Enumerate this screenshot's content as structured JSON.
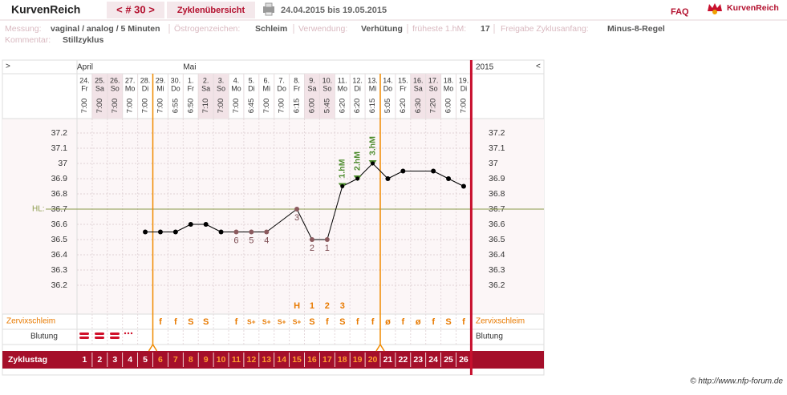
{
  "header": {
    "brand": "KurvenReich",
    "cycle_nav": "< # 30 >",
    "overview": "Zyklenübersicht",
    "date_range": "24.04.2015 bis 19.05.2015",
    "faq": "FAQ",
    "logo": "KurvenReich"
  },
  "info": {
    "measure_label": "Messung:",
    "measure": "vaginal / analog / 5 Minuten",
    "estrogen_label": "Östrogenzeichen:",
    "estrogen": "Schleim",
    "usage_label": "Verwendung:",
    "usage": "Verhütung",
    "earliest_label": "früheste 1.hM:",
    "earliest": "17",
    "release_label": "Freigabe Zyklusanfang:",
    "release": "Minus-8-Regel",
    "comment_label": "Kommentar:",
    "comment": "Stillzyklus"
  },
  "chart_data": {
    "type": "line",
    "nav_left": ">",
    "nav_right": "<",
    "year": "2015",
    "months": [
      "April",
      null,
      null,
      null,
      null,
      null,
      null,
      "Mai",
      null,
      null,
      null,
      null,
      null,
      null,
      null,
      null,
      null,
      null,
      null,
      null,
      null,
      null,
      null,
      null,
      null,
      null
    ],
    "categories": [
      "24.",
      "25.",
      "26.",
      "27.",
      "28.",
      "29.",
      "30.",
      "1.",
      "2.",
      "3.",
      "4.",
      "5.",
      "6.",
      "7.",
      "8.",
      "9.",
      "10.",
      "11.",
      "12.",
      "13.",
      "14.",
      "15.",
      "16.",
      "17.",
      "18.",
      "19."
    ],
    "weekdays": [
      "Fr",
      "Sa",
      "So",
      "Mo",
      "Di",
      "Mi",
      "Do",
      "Fr",
      "Sa",
      "So",
      "Mo",
      "Di",
      "Mi",
      "Do",
      "Fr",
      "Sa",
      "So",
      "Mo",
      "Di",
      "Mi",
      "Do",
      "Fr",
      "Sa",
      "So",
      "Mo",
      "Di"
    ],
    "times": [
      "7:00",
      "7:00",
      "7:00",
      "7:00",
      "7:00",
      "7:00",
      "6:55",
      "6:50",
      "7:10",
      "7:00",
      "7:00",
      "6:45",
      "7:00",
      "7:00",
      "6:15",
      "6:00",
      "5:45",
      "6:20",
      "6:20",
      "6:15",
      "5:05",
      "6:20",
      "6:30",
      "7:20",
      "6:00",
      "7:00"
    ],
    "values": [
      null,
      null,
      null,
      null,
      36.55,
      36.55,
      36.55,
      36.6,
      36.6,
      36.55,
      36.55,
      36.55,
      36.55,
      null,
      36.7,
      36.5,
      36.5,
      36.85,
      36.9,
      37.0,
      36.9,
      36.95,
      null,
      36.95,
      36.9,
      36.85
    ],
    "point_labels": [
      null,
      null,
      null,
      null,
      null,
      null,
      null,
      null,
      null,
      null,
      "6",
      "5",
      "4",
      null,
      "3",
      "2",
      "1",
      null,
      null,
      null,
      null,
      null,
      null,
      null,
      null,
      null
    ],
    "hm_labels": [
      null,
      null,
      null,
      null,
      null,
      null,
      null,
      null,
      null,
      null,
      null,
      null,
      null,
      null,
      null,
      null,
      null,
      "1.hM",
      "2.hM",
      "3.hM",
      null,
      null,
      null,
      null,
      null,
      null
    ],
    "color": "#000000",
    "ylim": [
      36.1,
      37.3
    ],
    "yticks": [
      36.2,
      36.3,
      36.4,
      36.5,
      36.6,
      36.7,
      36.8,
      36.9,
      37,
      37.1,
      37.2
    ],
    "grid": true,
    "coverline": 36.7,
    "coverline_label": "HL:",
    "peak_markers": [
      null,
      null,
      null,
      null,
      null,
      null,
      null,
      null,
      null,
      null,
      null,
      null,
      null,
      null,
      "H",
      "1",
      "2",
      "3",
      null,
      null,
      null,
      null,
      null,
      null,
      null,
      null
    ],
    "cervix_label": "Zervixschleim",
    "cervix": [
      null,
      null,
      null,
      null,
      null,
      "f",
      "f",
      "S",
      "S",
      null,
      "f",
      "S+",
      "S+",
      "S+",
      "S+",
      "S",
      "f",
      "S",
      "f",
      "f",
      "ø",
      "f",
      "ø",
      "f",
      "S",
      "f"
    ],
    "bleeding_label": "Blutung",
    "cycle_day_label": "Zyklustag",
    "cycle_days": [
      1,
      2,
      3,
      4,
      5,
      6,
      7,
      8,
      9,
      10,
      11,
      12,
      13,
      14,
      15,
      16,
      17,
      18,
      19,
      20,
      21,
      22,
      23,
      24,
      25,
      26
    ]
  },
  "footer": "© http://www.nfp-forum.de"
}
